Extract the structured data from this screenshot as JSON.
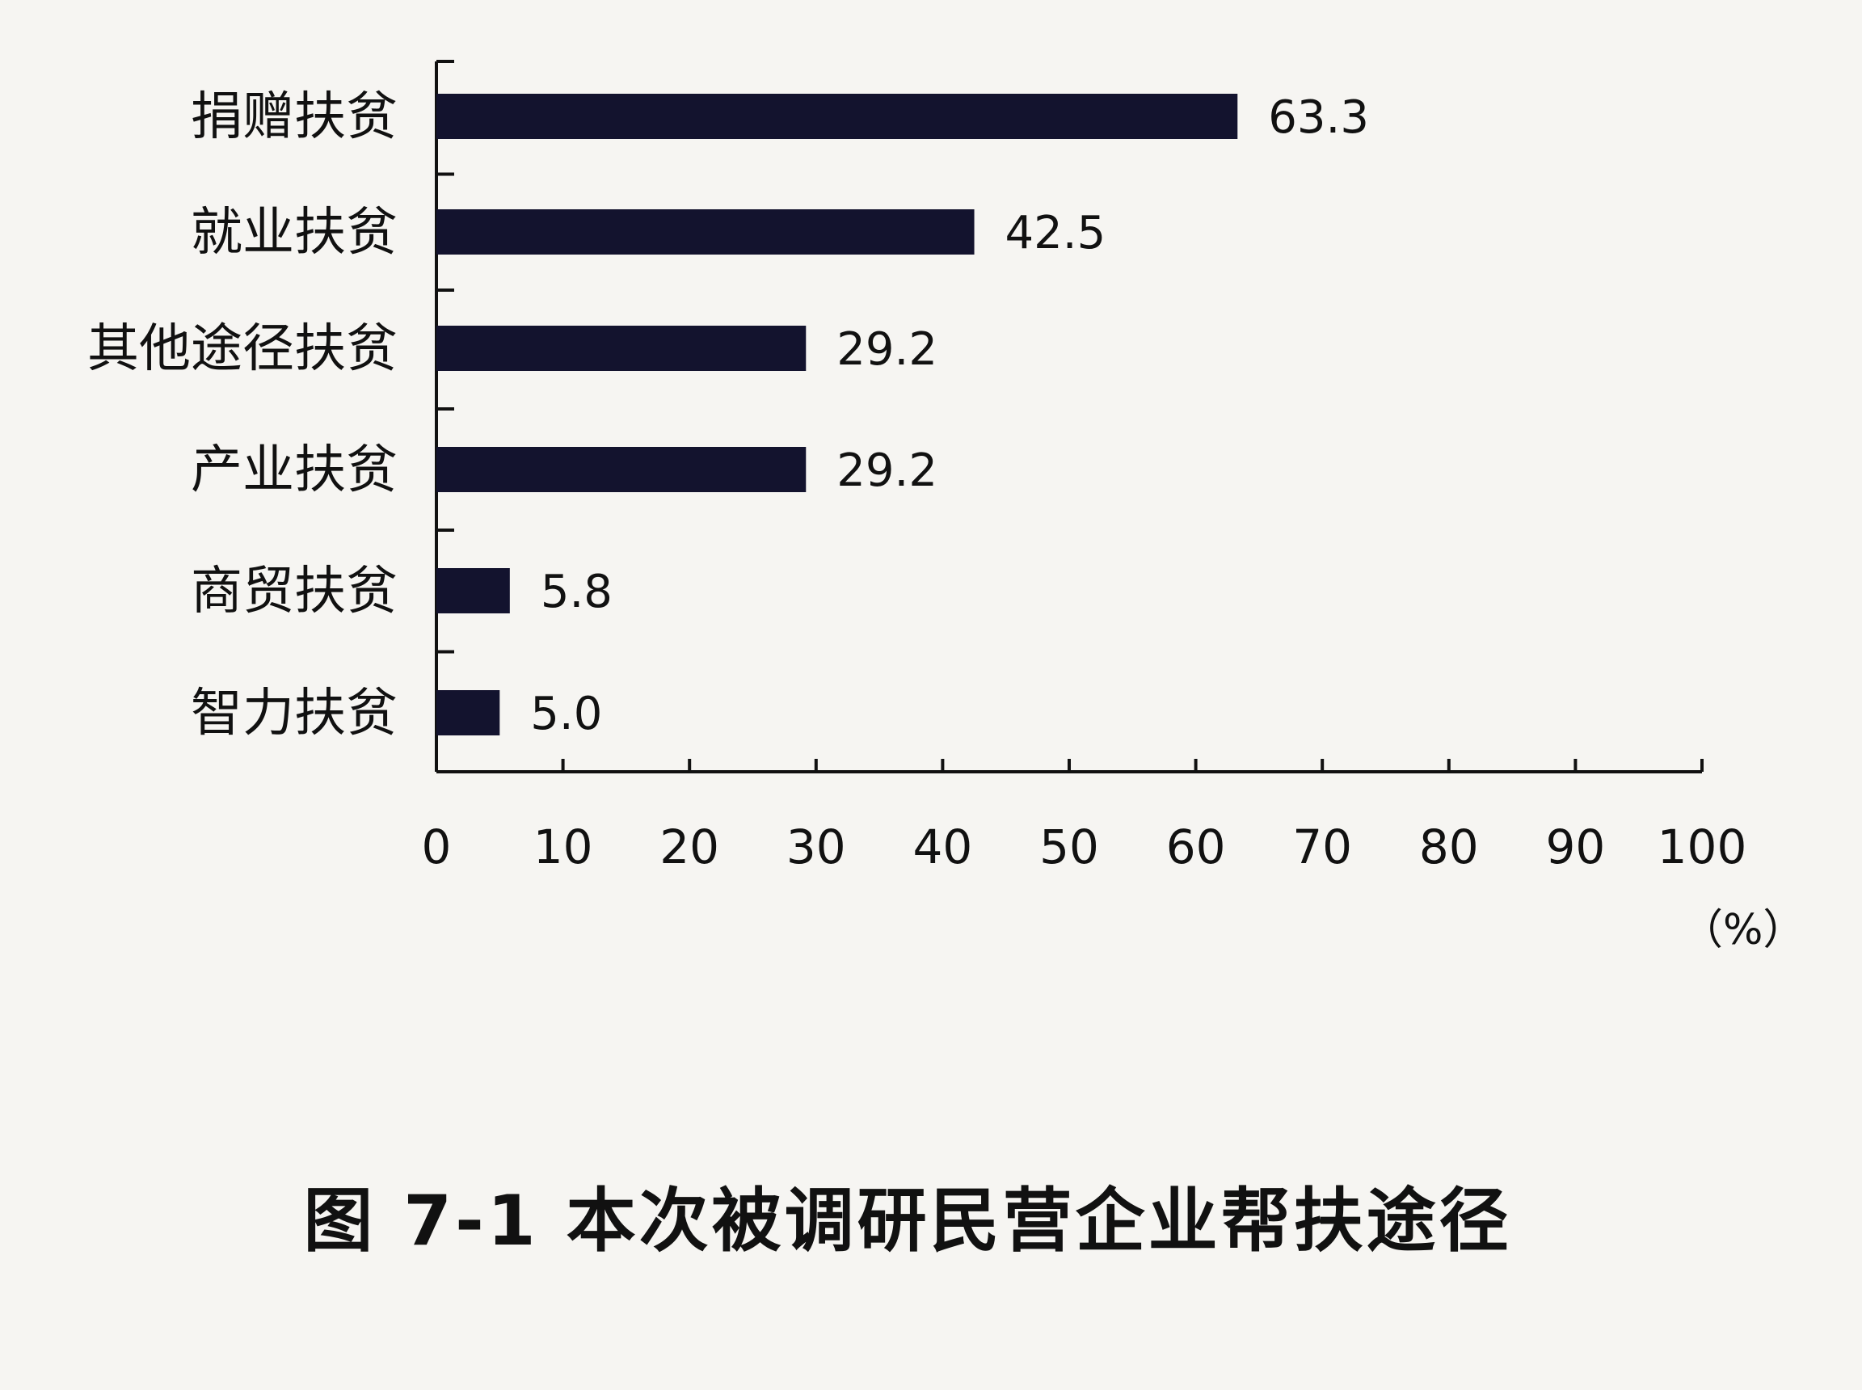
{
  "chart_data": {
    "type": "bar",
    "orientation": "horizontal",
    "title": "图 7-1 本次被调研民营企业帮扶途径",
    "categories": [
      "捐赠扶贫",
      "就业扶贫",
      "其他途径扶贫",
      "产业扶贫",
      "商贸扶贫",
      "智力扶贫"
    ],
    "values": [
      63.3,
      42.5,
      29.2,
      29.2,
      5.8,
      5.0
    ],
    "value_labels": [
      "63.3",
      "42.5",
      "29.2",
      "29.2",
      "5.8",
      "5.0"
    ],
    "xlabel": "（%）",
    "ylabel": "",
    "xlim": [
      0,
      100
    ],
    "xticks": [
      "0",
      "10",
      "20",
      "30",
      "40",
      "50",
      "60",
      "70",
      "80",
      "90",
      "100"
    ],
    "grid": false,
    "bar_color": "#13132e"
  }
}
